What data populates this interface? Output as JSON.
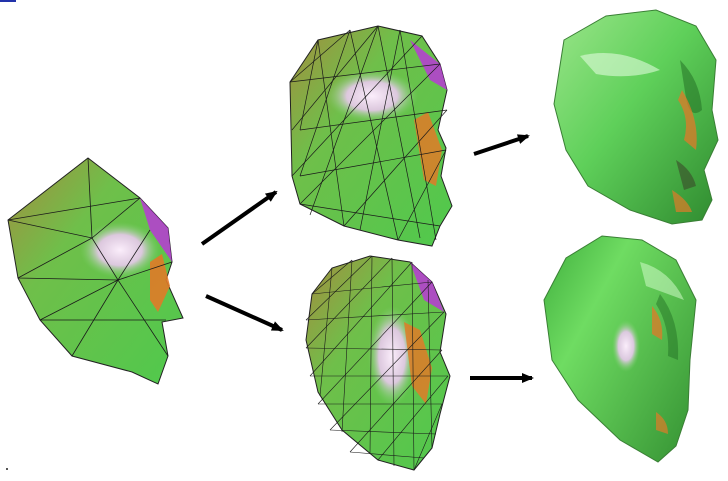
{
  "figure": {
    "panels": [
      {
        "id": "coarse-mesh",
        "stage": "input",
        "mesh": "coarse"
      },
      {
        "id": "refined-mesh-a",
        "stage": "refinement",
        "mesh": "medium"
      },
      {
        "id": "refined-mesh-b",
        "stage": "refinement",
        "mesh": "fine"
      },
      {
        "id": "smooth-result-a",
        "stage": "output",
        "mesh": "smooth"
      },
      {
        "id": "smooth-result-b",
        "stage": "output",
        "mesh": "smooth"
      }
    ],
    "arrows": [
      {
        "from": "coarse-mesh",
        "to": "refined-mesh-a"
      },
      {
        "from": "coarse-mesh",
        "to": "refined-mesh-b"
      },
      {
        "from": "refined-mesh-a",
        "to": "smooth-result-a"
      },
      {
        "from": "refined-mesh-b",
        "to": "smooth-result-b"
      }
    ],
    "colors": {
      "surface_green": "#5fd05a",
      "surface_dark": "#2f8a2f",
      "highlight": "#f0d8f0",
      "accent_magenta": "#b83ad6",
      "accent_orange": "#e07a28",
      "accent_olive": "#a08a3c",
      "wireframe": "#1a1a1a",
      "arrow": "#000000"
    }
  }
}
